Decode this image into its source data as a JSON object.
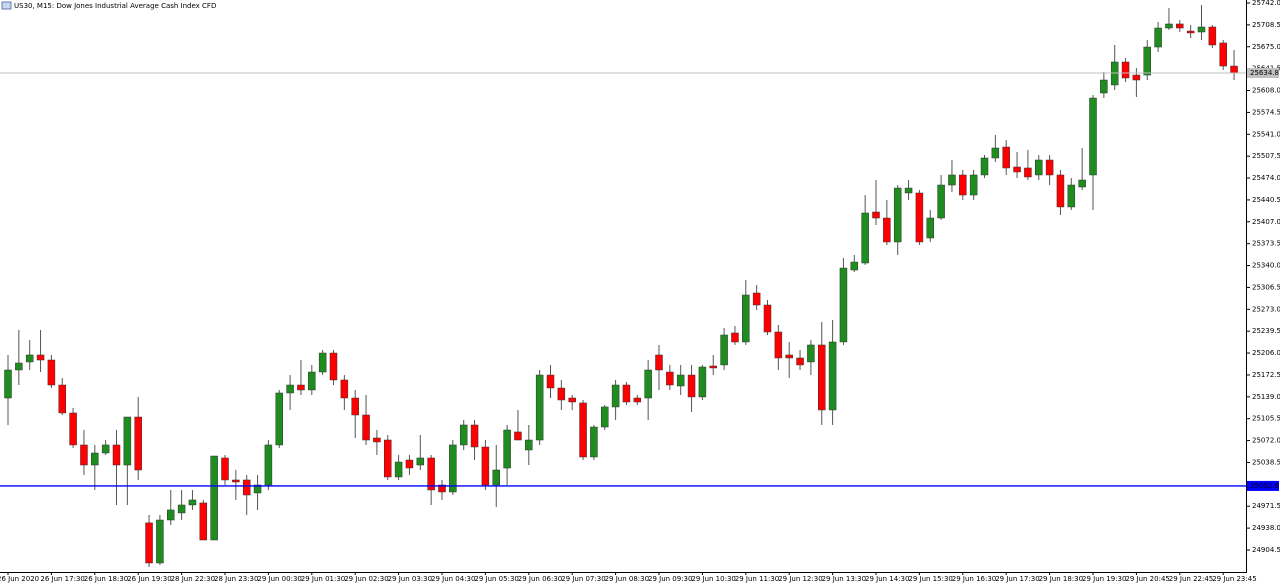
{
  "chart_data": {
    "type": "candlestick",
    "title": "US30, M15:  Dow Jones Industrial Average Cash Index CFD",
    "up_color": "#1e8c1e",
    "down_color": "#ff0000",
    "wick_color": "#555555",
    "ylim": [
      24870.8,
      25746.6
    ],
    "yticks": [
      {
        "value": 25742,
        "label": "25742.0"
      },
      25708.5,
      {
        "value": 25675,
        "label": "25675.0"
      },
      25641.5,
      {
        "value": 25608,
        "label": "25608.0"
      },
      25574.5,
      {
        "value": 25541,
        "label": "25541.0"
      },
      25507.5,
      {
        "value": 25474,
        "label": "25474.0"
      },
      25440.5,
      {
        "value": 25407,
        "label": "25407.0"
      },
      25373.5,
      {
        "value": 25340,
        "label": "25340.0"
      },
      25306.5,
      {
        "value": 25273,
        "label": "25273.0"
      },
      25239.5,
      {
        "value": 25206,
        "label": "25206.0"
      },
      25172.5,
      {
        "value": 25139,
        "label": "25139.0"
      },
      25105.5,
      {
        "value": 25072,
        "label": "25072.0"
      },
      25038.5,
      24971.5,
      {
        "value": 24938,
        "label": "24938.0"
      },
      24904.5
    ],
    "price_lines": [
      {
        "value": 25634.8,
        "color": "#c0c0c0"
      },
      {
        "value": 25002.6,
        "color": "#0000ff"
      }
    ],
    "categories": [
      "26 Jun 2020",
      null,
      null,
      null,
      "26 Jun 17:30",
      null,
      null,
      null,
      "26 Jun 18:30",
      null,
      null,
      null,
      "26 Jun 19:30",
      null,
      null,
      null,
      "28 Jun 22:30",
      null,
      null,
      null,
      "28 Jun 23:30",
      null,
      null,
      null,
      "29 Jun 00:30",
      null,
      null,
      null,
      "29 Jun 01:30",
      null,
      null,
      null,
      "29 Jun 02:30",
      null,
      null,
      null,
      "29 Jun 03:30",
      null,
      null,
      null,
      "29 Jun 04:30",
      null,
      null,
      null,
      "29 Jun 05:30",
      null,
      null,
      null,
      "29 Jun 06:30",
      null,
      null,
      null,
      "29 Jun 07:30",
      null,
      null,
      null,
      "29 Jun 08:30",
      null,
      null,
      null,
      "29 Jun 09:30",
      null,
      null,
      null,
      "29 Jun 10:30",
      null,
      null,
      null,
      "29 Jun 11:30",
      null,
      null,
      null,
      "29 Jun 12:30",
      null,
      null,
      null,
      "29 Jun 13:30",
      null,
      null,
      null,
      "29 Jun 14:30",
      null,
      null,
      null,
      "29 Jun 15:30",
      null,
      null,
      null,
      "29 Jun 16:30",
      null,
      null,
      null,
      "29 Jun 17:30",
      null,
      null,
      null,
      "29 Jun 18:30",
      null,
      null,
      null,
      "29 Jun 19:30",
      null,
      null,
      null,
      "29 Jun 20:45",
      null,
      null,
      null,
      "29 Jun 22:45",
      null,
      null,
      null,
      "29 Jun 23:45",
      null
    ],
    "open": [
      25137.2,
      25180.1,
      25192.4,
      25203.1,
      25195.4,
      25157.1,
      25114.3,
      25065.3,
      25034.6,
      25053.0,
      25065.3,
      25034.6,
      25108.1,
      24946.0,
      24884.6,
      24950.4,
      24961.2,
      24973.4,
      24976.5,
      24919.8,
      25045.4,
      25011.7,
      25011.7,
      24991.8,
      25004.0,
      25065.3,
      25144.9,
      25157.1,
      25149.5,
      25177.0,
      25206.1,
      25164.8,
      25137.2,
      25111.2,
      25076.0,
      25072.9,
      25016.3,
      25042.3,
      25034.6,
      25045.4,
      25004.0,
      24993.3,
      25065.3,
      25095.9,
      25062.2,
      25004.0,
      25030.0,
      25085.2,
      25057.6,
      25072.9,
      25172.4,
      25152.5,
      25137.2,
      25129.6,
      25046.9,
      25092.8,
      25123.5,
      25157.1,
      25137.2,
      25137.2,
      25203.1,
      25177.0,
      25155.6,
      25172.4,
      25138.8,
      25186.2,
      25187.8,
      25236.8,
      25223.0,
      25298.0,
      25279.6,
      25238.3,
      25203.1,
      25198.5,
      25192.4,
      25218.4,
      25118.9,
      25223.0,
      25333.2,
      25343.9,
      25422.0,
      25412.8,
      25376.1,
      25451.1,
      25451.1,
      25382.2,
      25412.8,
      25463.3,
      25478.7,
      25448.0,
      25478.7,
      25504.7,
      25521.5,
      25490.9,
      25489.4,
      25478.7,
      25501.6,
      25478.7,
      25429.7,
      25460.3,
      25478.7,
      25604.2,
      25616.5,
      25651.7,
      25631.7,
      25631.7,
      25674.6,
      25703.7,
      25709.9,
      25699.1,
      25697.6,
      25705.3,
      25680.8,
      25645.5
    ],
    "high": [
      25203.1,
      25241.4,
      25226.0,
      25241.4,
      25203.1,
      25167.8,
      25121.9,
      25088.2,
      25065.3,
      25072.9,
      25088.2,
      25108.1,
      25138.8,
      24958.1,
      24958.1,
      24996.4,
      24996.4,
      24996.4,
      24981.1,
      25048.4,
      25050.0,
      25027.0,
      25019.4,
      25019.4,
      25072.9,
      25149.5,
      25172.4,
      25195.4,
      25187.8,
      25210.7,
      25210.7,
      25172.4,
      25149.5,
      25141.8,
      25088.2,
      25080.6,
      25050.0,
      25050.0,
      25080.6,
      25050.0,
      25011.7,
      25072.9,
      25103.5,
      25103.5,
      25072.9,
      25065.3,
      25095.9,
      25118.9,
      25095.9,
      25180.1,
      25187.8,
      25164.8,
      25141.8,
      25134.2,
      25095.9,
      25126.5,
      25164.8,
      25161.7,
      25141.8,
      25195.4,
      25218.4,
      25187.8,
      25187.8,
      25187.8,
      25187.8,
      25203.1,
      25244.4,
      25247.5,
      25317.9,
      25310.2,
      25287.3,
      25249.0,
      25223.0,
      25210.7,
      25226.0,
      25253.6,
      25256.6,
      25351.6,
      25356.2,
      25448.0,
      25471.0,
      25440.4,
      25463.3,
      25471.0,
      25455.7,
      25425.1,
      25478.7,
      25501.6,
      25486.3,
      25486.3,
      25509.3,
      25539.9,
      25532.2,
      25513.9,
      25516.9,
      25509.3,
      25509.3,
      25486.3,
      25474.1,
      25520.0,
      25601.1,
      25636.4,
      25677.7,
      25657.8,
      25642.5,
      25685.4,
      25712.9,
      25734.3,
      25716.0,
      25708.3,
      25738.9,
      25708.3,
      25685.4,
      25670.0
    ],
    "low": [
      25095.9,
      25157.1,
      25180.1,
      25177.0,
      25152.5,
      25111.2,
      25060.7,
      25019.4,
      24996.4,
      25050.0,
      24973.4,
      24973.4,
      25011.7,
      24878.5,
      24881.5,
      24942.8,
      24950.4,
      24965.8,
      24919.8,
      24919.8,
      25004.0,
      24981.1,
      24958.1,
      24965.8,
      24996.4,
      25060.7,
      25118.9,
      25141.8,
      25141.8,
      25172.4,
      25157.1,
      25118.9,
      25076.0,
      25065.3,
      25050.0,
      25011.7,
      25011.7,
      25019.4,
      25027.0,
      24973.4,
      24981.1,
      24988.7,
      25057.6,
      25042.3,
      24996.4,
      24970.4,
      25004.0,
      25072.9,
      25034.6,
      25065.3,
      25137.2,
      25118.9,
      25118.9,
      25042.3,
      25042.3,
      25088.2,
      25103.5,
      25126.5,
      25126.5,
      25103.5,
      25149.5,
      25149.5,
      25141.8,
      25115.8,
      25134.2,
      25172.4,
      25180.1,
      25218.4,
      25218.4,
      25272.0,
      25233.7,
      25180.1,
      25167.8,
      25180.1,
      25172.4,
      25095.9,
      25095.9,
      25218.4,
      25330.1,
      25340.9,
      25402.1,
      25371.5,
      25356.2,
      25440.4,
      25371.5,
      25376.1,
      25409.8,
      25452.6,
      25440.4,
      25440.4,
      25474.1,
      25498.6,
      25478.7,
      25474.1,
      25471.0,
      25471.0,
      25463.3,
      25417.4,
      25425.1,
      25455.7,
      25425.1,
      25596.5,
      25608.8,
      25621.1,
      25598.1,
      25624.1,
      25667.0,
      25700.7,
      25697.6,
      25688.4,
      25685.4,
      25673.1,
      25639.4,
      25624.1
    ],
    "close": [
      25180.1,
      25190.8,
      25203.1,
      25195.4,
      25157.1,
      25114.3,
      25065.3,
      25034.6,
      25053.0,
      25065.3,
      25034.6,
      25108.1,
      25027.0,
      24884.6,
      24950.4,
      24965.8,
      24973.4,
      24981.1,
      24919.8,
      25048.4,
      25011.7,
      25008.6,
      24988.7,
      25004.0,
      25065.3,
      25144.9,
      25157.1,
      25149.5,
      25177.0,
      25206.1,
      25164.8,
      25137.2,
      25111.2,
      25072.9,
      25069.9,
      25016.3,
      25039.2,
      25030.0,
      25045.4,
      24996.4,
      24993.3,
      25065.3,
      25095.9,
      25062.2,
      25004.0,
      25027.0,
      25088.2,
      25072.9,
      25072.9,
      25172.4,
      25152.5,
      25134.2,
      25131.1,
      25046.9,
      25092.8,
      25123.5,
      25157.1,
      25131.1,
      25131.1,
      25180.1,
      25180.1,
      25157.1,
      25172.4,
      25138.8,
      25184.7,
      25183.2,
      25233.7,
      25223.0,
      25294.9,
      25279.6,
      25238.3,
      25198.5,
      25198.5,
      25187.8,
      25218.4,
      25118.9,
      25223.0,
      25336.2,
      25345.4,
      25420.5,
      25412.8,
      25376.1,
      25458.7,
      25458.7,
      25376.1,
      25412.8,
      25463.3,
      25478.7,
      25448.0,
      25478.7,
      25504.7,
      25520.0,
      25489.4,
      25483.3,
      25475.6,
      25501.6,
      25478.7,
      25429.7,
      25463.3,
      25471.0,
      25596.5,
      25624.1,
      25651.7,
      25627.2,
      25624.1,
      25674.6,
      25703.7,
      25709.9,
      25703.7,
      25696.1,
      25705.3,
      25677.7,
      25645.5,
      25634.8
    ]
  }
}
